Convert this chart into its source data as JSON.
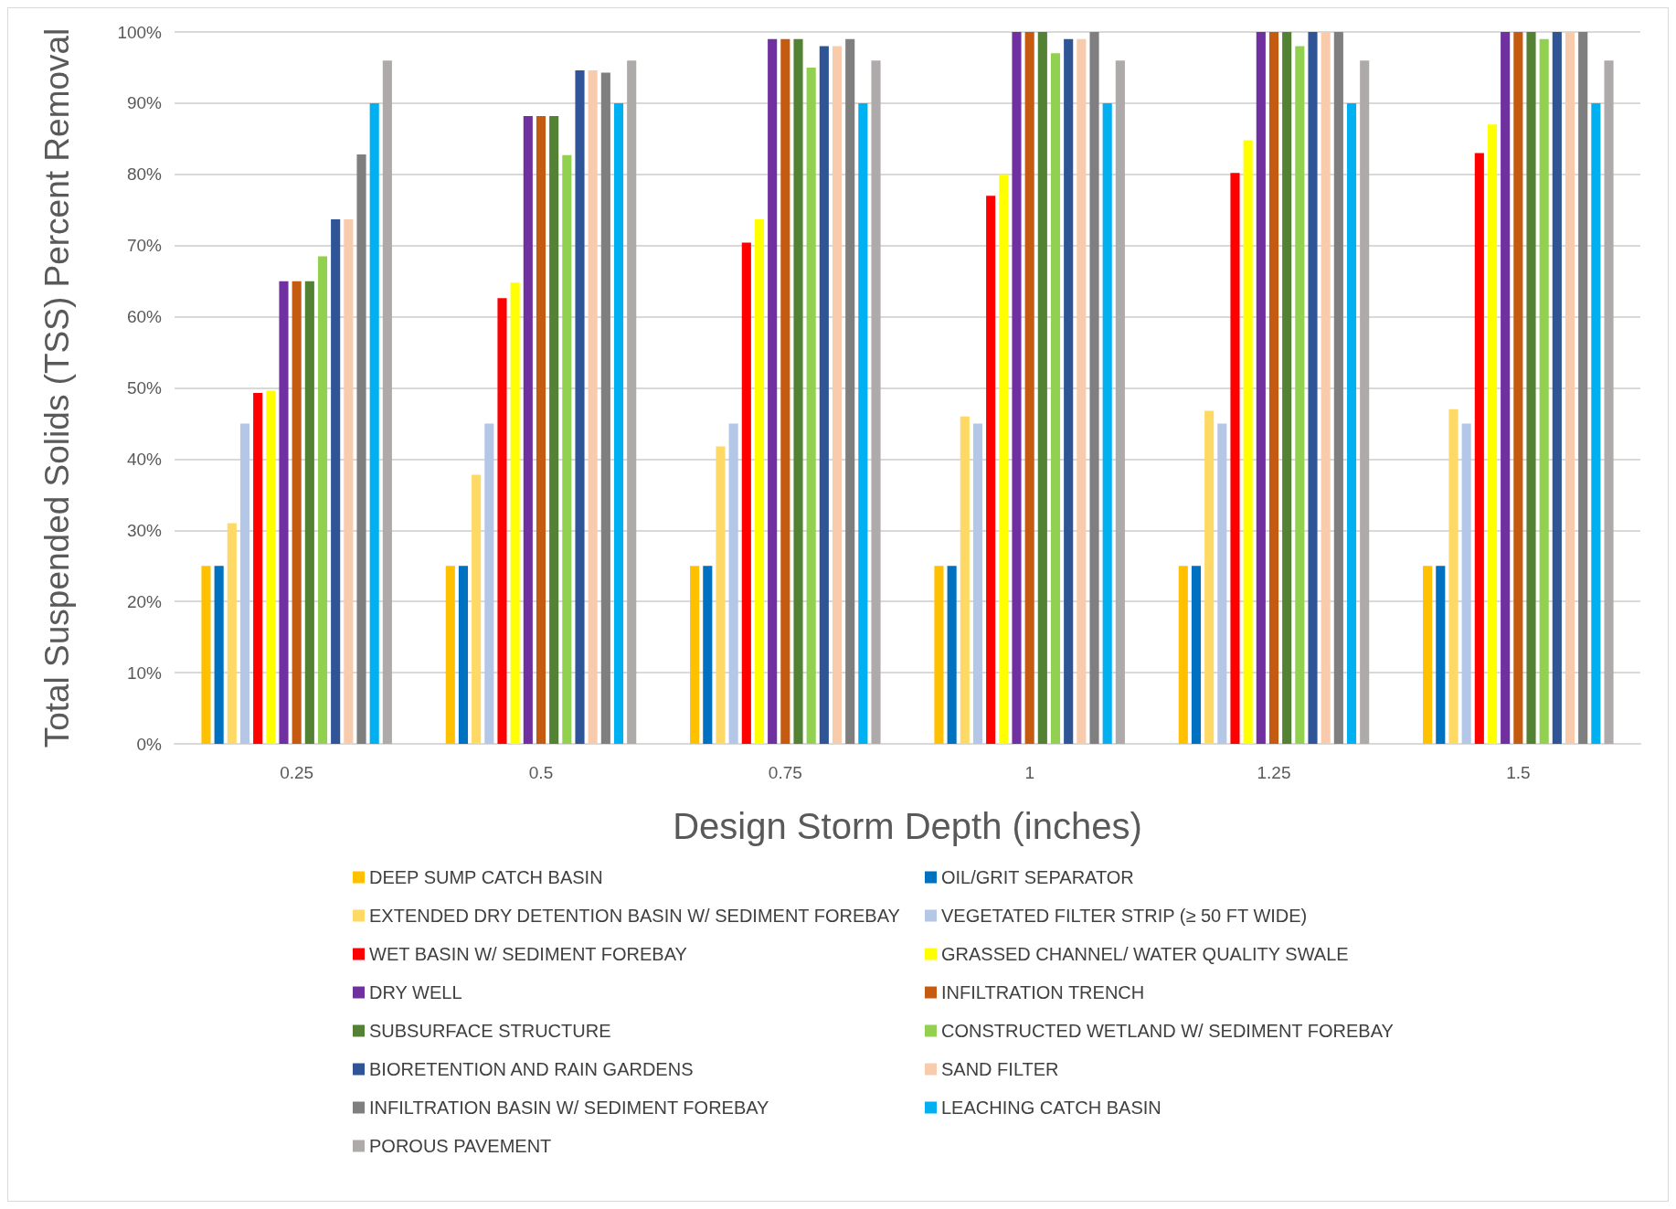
{
  "chart_data": {
    "type": "bar",
    "xlabel": "Design Storm Depth (inches)",
    "ylabel": "Total Suspended Solids (TSS) Percent Removal",
    "categories": [
      "0.25",
      "0.5",
      "0.75",
      "1",
      "1.25",
      "1.5"
    ],
    "ylim": [
      0,
      100
    ],
    "yticks": [
      {
        "value": 0,
        "label": "0%"
      },
      {
        "value": 10,
        "label": "10%"
      },
      {
        "value": 20,
        "label": "20%"
      },
      {
        "value": 30,
        "label": "30%"
      },
      {
        "value": 40,
        "label": "40%"
      },
      {
        "value": 50,
        "label": "50%"
      },
      {
        "value": 60,
        "label": "60%"
      },
      {
        "value": 70,
        "label": "70%"
      },
      {
        "value": 80,
        "label": "80%"
      },
      {
        "value": 90,
        "label": "90%"
      },
      {
        "value": 100,
        "label": "100%"
      }
    ],
    "grid": "y",
    "legend": "bottom",
    "series": [
      {
        "name": "DEEP SUMP CATCH BASIN",
        "color": "#ffc000",
        "values": [
          25,
          25,
          25,
          25,
          25,
          25
        ]
      },
      {
        "name": "OIL/GRIT SEPARATOR",
        "color": "#0070c0",
        "values": [
          25,
          25,
          25,
          25,
          25,
          25
        ]
      },
      {
        "name": "EXTENDED DRY DETENTION BASIN W/ SEDIMENT FOREBAY",
        "color": "#ffd966",
        "values": [
          31,
          37.8,
          41.8,
          46,
          46.8,
          47
        ]
      },
      {
        "name": "VEGETATED FILTER STRIP (≥ 50 FT WIDE)",
        "color": "#b4c7e7",
        "values": [
          45,
          45,
          45,
          45,
          45,
          45
        ]
      },
      {
        "name": "WET BASIN W/ SEDIMENT FOREBAY",
        "color": "#ff0000",
        "values": [
          49.3,
          62.6,
          70.4,
          77,
          80.2,
          83
        ]
      },
      {
        "name": "GRASSED CHANNEL/ WATER QUALITY SWALE",
        "color": "#ffff00",
        "values": [
          49.6,
          64.8,
          73.7,
          80,
          84.8,
          87
        ]
      },
      {
        "name": "DRY WELL",
        "color": "#7030a0",
        "values": [
          65,
          88.2,
          99,
          100,
          100,
          100
        ]
      },
      {
        "name": "INFILTRATION TRENCH",
        "color": "#c55a11",
        "values": [
          65,
          88.2,
          99,
          100,
          100,
          100
        ]
      },
      {
        "name": "SUBSURFACE STRUCTURE",
        "color": "#548235",
        "values": [
          65,
          88.2,
          99,
          100,
          100,
          100
        ]
      },
      {
        "name": "CONSTRUCTED WETLAND W/ SEDIMENT FOREBAY",
        "color": "#92d050",
        "values": [
          68.5,
          82.7,
          95,
          97,
          98,
          99
        ]
      },
      {
        "name": "BIORETENTION AND RAIN GARDENS",
        "color": "#2f5597",
        "values": [
          73.7,
          94.6,
          98,
          99,
          100,
          100
        ]
      },
      {
        "name": "SAND FILTER",
        "color": "#f8cbad",
        "values": [
          73.7,
          94.6,
          98,
          99,
          100,
          100
        ]
      },
      {
        "name": "INFILTRATION BASIN W/ SEDIMENT FOREBAY",
        "color": "#7f7f7f",
        "values": [
          82.8,
          94.3,
          99,
          100,
          100,
          100
        ]
      },
      {
        "name": "LEACHING CATCH BASIN",
        "color": "#00b0f0",
        "values": [
          90,
          90,
          90,
          90,
          90,
          90
        ]
      },
      {
        "name": "POROUS PAVEMENT",
        "color": "#aeaaaa",
        "values": [
          96,
          96,
          96,
          96,
          96,
          96
        ]
      }
    ]
  }
}
